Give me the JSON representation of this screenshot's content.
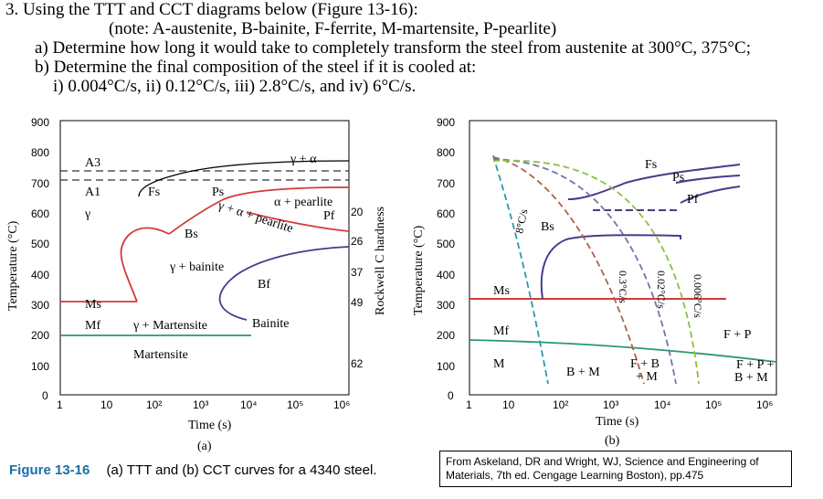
{
  "question": {
    "title": "3.  Using the TTT and CCT diagrams below (Figure 13-16):",
    "note": "(note: A-austenite, B-bainite, F-ferrite, M-martensite, P-pearlite)",
    "part_a": "a) Determine how long it would take to completely transform the steel from austenite at 300°C, 375°C;",
    "part_b": "b) Determine the final composition of the steel if it is cooled at:",
    "rates": "i) 0.004°C/s,  ii) 0.12°C/s,  iii) 2.8°C/s,  and iv) 6°C/s."
  },
  "figure": {
    "caption_label": "Figure 13-16",
    "caption_text": "(a) TTT and (b) CCT curves for a 4340 steel.",
    "source": "From Askeland, DR and Wright, WJ, Science and Engineering of Materials, 7th ed. Cengage Learning Boston), pp.475"
  },
  "ttt": {
    "panel_label": "(a)",
    "ylabel": "Temperature (°C)",
    "xlabel": "Time (s)",
    "right_label": "Rockwell C hardness",
    "y_ticks": [
      "900",
      "800",
      "700",
      "600",
      "500",
      "400",
      "300",
      "200",
      "100",
      "0"
    ],
    "x_ticks": [
      "1",
      "10",
      "10²",
      "10³",
      "10⁴",
      "10⁵",
      "10⁶"
    ],
    "hardness_ticks": [
      "20",
      "26",
      "37",
      "49",
      "62"
    ],
    "labels": {
      "A3": "A3",
      "A1": "A1",
      "gamma": "γ",
      "gamma_alpha": "γ + α",
      "alpha_pearlite": "α + pearlite",
      "gamma_alpha_pearlite": "γ + α + pearlite",
      "Fs": "Fs",
      "Ps": "Ps",
      "Pf": "Pf",
      "Bs": "Bs",
      "Bf": "Bf",
      "gamma_bainite": "γ + bainite",
      "bainite": "Bainite",
      "Ms": "Ms",
      "Mf": "Mf",
      "gamma_martensite": "γ + Martensite",
      "martensite": "Martensite"
    }
  },
  "cct": {
    "panel_label": "(b)",
    "ylabel": "Temperature (°C)",
    "xlabel": "Time (s)",
    "y_ticks": [
      "900",
      "800",
      "700",
      "600",
      "500",
      "400",
      "300",
      "200",
      "100",
      "0"
    ],
    "x_ticks": [
      "1",
      "10",
      "10²",
      "10³",
      "10⁴",
      "10⁵",
      "10⁶"
    ],
    "rates": [
      "8°C/s",
      "0.3°C/s",
      "0.02°C/s",
      "0.006°C/s"
    ],
    "labels": {
      "Fs": "Fs",
      "Ps": "Ps",
      "Pf": "Pf",
      "Bs": "Bs",
      "Ms": "Ms",
      "Mf": "Mf",
      "M": "M",
      "BM": "B + M",
      "FB": "F + B",
      "FB2": "+ M",
      "FP": "F + P",
      "FPB": "F + P +",
      "FPB2": "B + M"
    }
  },
  "colors": {
    "a3_line": "#333333",
    "pearlite_curve": "#d33a3a",
    "bainite_curve": "#4a3a8a",
    "ms_line": "#d33a3a",
    "mf_line": "#2a9a6a",
    "rate_8": "#2a9aa8",
    "rate_03": "#b0604a",
    "rate_002": "#6a7aa8",
    "rate_0006": "#8ac040",
    "caption": "#1a6fa8"
  }
}
